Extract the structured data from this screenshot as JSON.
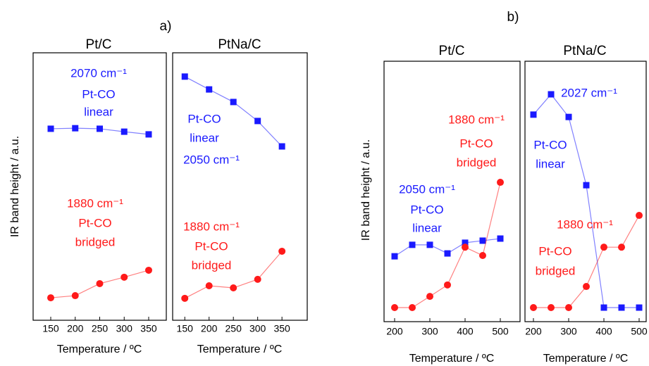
{
  "chart_data": [
    {
      "type": "line",
      "panel_label": "a)",
      "title": "Pt/C",
      "xlabel": "Temperature / ºC",
      "ylabel": "IR band height / a.u.",
      "x": [
        150,
        200,
        250,
        300,
        350
      ],
      "xlim": [
        114,
        386
      ],
      "xticks": [
        150,
        200,
        250,
        300,
        350
      ],
      "ylim": [
        0,
        100
      ],
      "series": [
        {
          "name": "Pt-CO linear",
          "color": "#1a1aff",
          "marker": "square",
          "values": [
            71.6,
            71.8,
            71.6,
            70.5,
            69.5
          ]
        },
        {
          "name": "Pt-CO bridged",
          "color": "#ff1a1a",
          "marker": "circle",
          "values": [
            8.4,
            9.2,
            13.7,
            16.1,
            18.7
          ]
        }
      ],
      "annotations": [
        {
          "text": "2070 cm⁻¹",
          "color": "#1a1aff"
        },
        {
          "text": "Pt-CO",
          "color": "#1a1aff"
        },
        {
          "text": "linear",
          "color": "#1a1aff"
        },
        {
          "text": "1880 cm⁻¹",
          "color": "#ff1a1a"
        },
        {
          "text": "Pt-CO",
          "color": "#ff1a1a"
        },
        {
          "text": "bridged",
          "color": "#ff1a1a"
        }
      ]
    },
    {
      "type": "line",
      "title": "PtNa/C",
      "xlabel": "Temperature / ºC",
      "x": [
        150,
        200,
        250,
        300,
        350
      ],
      "xlim": [
        125,
        402
      ],
      "xticks": [
        150,
        200,
        250,
        300,
        350
      ],
      "ylim": [
        0,
        100
      ],
      "series": [
        {
          "name": "Pt-CO linear",
          "color": "#1a1aff",
          "marker": "square",
          "values": [
            91.1,
            86.3,
            81.6,
            74.5,
            65.0
          ]
        },
        {
          "name": "Pt-CO bridged",
          "color": "#ff1a1a",
          "marker": "circle",
          "values": [
            8.2,
            12.9,
            12.1,
            15.3,
            25.8
          ]
        }
      ],
      "annotations": [
        {
          "text": "Pt-CO",
          "color": "#1a1aff"
        },
        {
          "text": "linear",
          "color": "#1a1aff"
        },
        {
          "text": "2050 cm⁻¹",
          "color": "#1a1aff"
        },
        {
          "text": "1880 cm⁻¹",
          "color": "#ff1a1a"
        },
        {
          "text": "Pt-CO",
          "color": "#ff1a1a"
        },
        {
          "text": "bridged",
          "color": "#ff1a1a"
        }
      ]
    },
    {
      "type": "line",
      "panel_label": "b)",
      "title": "Pt/C",
      "xlabel": "Temperature / ºC",
      "ylabel": "IR band height / a.u.",
      "x": [
        200,
        250,
        300,
        350,
        400,
        450,
        500
      ],
      "xlim": [
        170,
        556
      ],
      "xticks": [
        200,
        300,
        400,
        500
      ],
      "ylim": [
        0,
        100
      ],
      "series": [
        {
          "name": "Pt-CO linear",
          "color": "#1a1aff",
          "marker": "square",
          "values": [
            25.1,
            29.5,
            29.5,
            26.2,
            30.3,
            31.1,
            31.9
          ]
        },
        {
          "name": "Pt-CO bridged",
          "color": "#ff1a1a",
          "marker": "circle",
          "values": [
            5.4,
            5.4,
            9.7,
            14.1,
            28.6,
            25.4,
            53.5
          ]
        }
      ],
      "annotations": [
        {
          "text": "1880 cm⁻¹",
          "color": "#ff1a1a"
        },
        {
          "text": "Pt-CO",
          "color": "#ff1a1a"
        },
        {
          "text": "bridged",
          "color": "#ff1a1a"
        },
        {
          "text": "2050 cm⁻¹",
          "color": "#1a1aff"
        },
        {
          "text": "Pt-CO",
          "color": "#1a1aff"
        },
        {
          "text": "linear",
          "color": "#1a1aff"
        }
      ]
    },
    {
      "type": "line",
      "title": "PtNa/C",
      "xlabel": "Temperature / ºC",
      "x": [
        200,
        250,
        300,
        350,
        400,
        450,
        500
      ],
      "xlim": [
        176,
        520
      ],
      "xticks": [
        200,
        300,
        400,
        500
      ],
      "ylim": [
        0,
        100
      ],
      "series": [
        {
          "name": "Pt-CO linear",
          "color": "#1a1aff",
          "marker": "square",
          "values": [
            79.5,
            87.3,
            78.6,
            52.4,
            5.4,
            5.4,
            5.4
          ]
        },
        {
          "name": "Pt-CO bridged",
          "color": "#ff1a1a",
          "marker": "circle",
          "values": [
            5.4,
            5.4,
            5.4,
            13.5,
            28.6,
            28.6,
            40.8
          ]
        }
      ],
      "annotations": [
        {
          "text": "2027 cm⁻¹",
          "color": "#1a1aff"
        },
        {
          "text": "Pt-CO",
          "color": "#1a1aff"
        },
        {
          "text": "linear",
          "color": "#1a1aff"
        },
        {
          "text": "1880 cm⁻¹",
          "color": "#ff1a1a"
        },
        {
          "text": "Pt-CO",
          "color": "#ff1a1a"
        },
        {
          "text": "bridged",
          "color": "#ff1a1a"
        }
      ]
    }
  ]
}
